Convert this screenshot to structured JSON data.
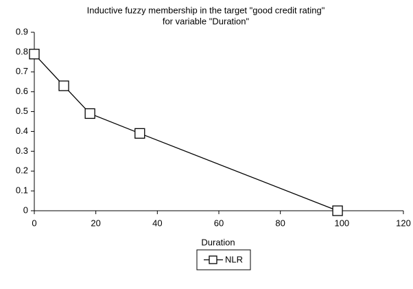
{
  "chart_data": {
    "type": "line",
    "title": [
      "Inductive fuzzy membership in the target \"good credit rating\"",
      "for variable \"Duration\""
    ],
    "x_label": "Duration",
    "xlim": [
      0,
      120
    ],
    "xticks": [
      0,
      20,
      40,
      60,
      80,
      100,
      120
    ],
    "ylim": [
      0,
      0.9
    ],
    "yticks": [
      0,
      0.1,
      0.2,
      0.3,
      0.4,
      0.5,
      0.6,
      0.7,
      0.8,
      0.9
    ],
    "grid": false,
    "legend": "bottom",
    "series": [
      {
        "name": "NLR",
        "color": "#000000",
        "x": [
          0,
          9.6,
          18.1,
          34.3,
          98.6
        ],
        "values": [
          0.79,
          0.63,
          0.49,
          0.39,
          0
        ]
      }
    ]
  }
}
